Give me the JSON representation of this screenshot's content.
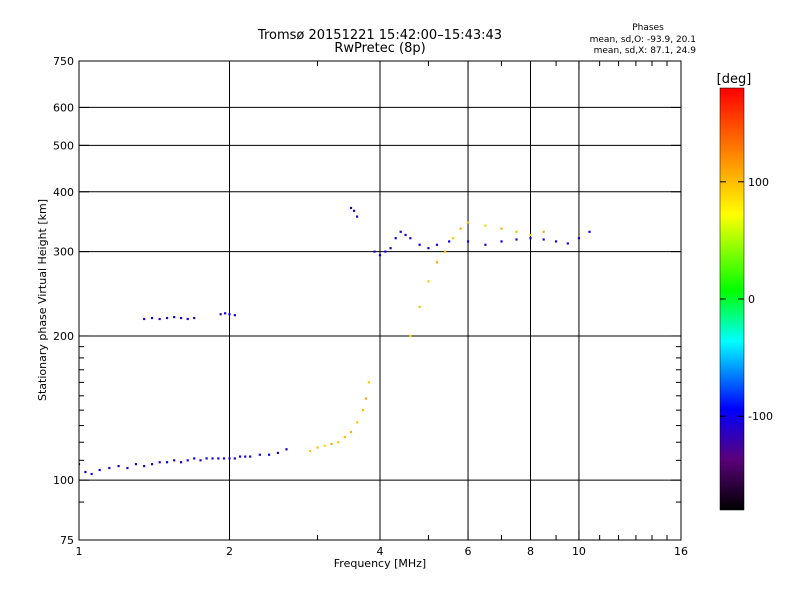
{
  "header": {
    "title": "Tromsø 20151221 15:42:00–15:43:43",
    "subtitle": "RwPretec (8p)"
  },
  "phases_box": {
    "heading": "Phases",
    "line_o": "mean, sd,O: -93.9, 20.1",
    "line_x": "mean, sd,X:  87.1, 24.9"
  },
  "colorbar": {
    "unit": "[deg]",
    "ticks": [
      {
        "value": 100,
        "label": "100"
      },
      {
        "value": 0,
        "label": "0"
      },
      {
        "value": -100,
        "label": "-100"
      }
    ],
    "range": [
      -180,
      180
    ]
  },
  "chart_data": {
    "type": "scatter",
    "title": "Tromsø 20151221 15:42:00–15:43:43",
    "subtitle": "RwPretec (8p)",
    "xlabel": "Frequency [MHz]",
    "ylabel": "Stationary phase Virtual Height [km]",
    "x_scale": "log",
    "y_scale": "log",
    "xlim": [
      1,
      16
    ],
    "ylim": [
      75,
      750
    ],
    "x_ticks": [
      1,
      2,
      4,
      6,
      8,
      10,
      16
    ],
    "x_minor_ticks": [
      3,
      5,
      7,
      9,
      11,
      12,
      13,
      14,
      15
    ],
    "y_ticks": [
      75,
      100,
      200,
      300,
      400,
      500,
      600,
      750
    ],
    "y_minor_ticks": [
      90,
      110,
      120,
      130,
      140,
      150,
      160,
      170,
      180,
      190
    ],
    "x_gridlines": [
      2,
      4,
      6,
      8,
      10
    ],
    "y_gridlines": [
      100,
      200,
      300,
      400,
      500,
      600
    ],
    "grid": true,
    "color_dimension": "phase [deg]",
    "series": [
      {
        "color": "#2020e0",
        "points": [
          [
            1.0,
            108,
            -110
          ],
          [
            1.03,
            104,
            -105
          ],
          [
            1.06,
            103,
            -110
          ],
          [
            1.1,
            105,
            -100
          ],
          [
            1.15,
            106,
            -110
          ],
          [
            1.2,
            107,
            -105
          ],
          [
            1.25,
            106,
            -115
          ],
          [
            1.3,
            108,
            -100
          ],
          [
            1.35,
            107,
            -110
          ],
          [
            1.4,
            108,
            -105
          ],
          [
            1.45,
            109,
            -110
          ],
          [
            1.5,
            109,
            -100
          ],
          [
            1.55,
            110,
            -110
          ],
          [
            1.6,
            109,
            -105
          ],
          [
            1.65,
            110,
            -115
          ],
          [
            1.7,
            111,
            -100
          ],
          [
            1.75,
            110,
            -110
          ],
          [
            1.8,
            111,
            -105
          ],
          [
            1.85,
            111,
            -110
          ],
          [
            1.9,
            111,
            -100
          ],
          [
            1.95,
            111,
            -110
          ],
          [
            2.0,
            111,
            -105
          ],
          [
            2.05,
            111,
            -110
          ],
          [
            2.1,
            112,
            -100
          ],
          [
            2.15,
            112,
            -110
          ],
          [
            2.2,
            112,
            -105
          ],
          [
            2.3,
            113,
            -110
          ],
          [
            2.4,
            113,
            -100
          ],
          [
            2.5,
            114,
            -110
          ],
          [
            2.6,
            116,
            -105
          ]
        ]
      },
      {
        "color": "#1818c8",
        "points": [
          [
            1.35,
            217,
            -110
          ],
          [
            1.4,
            218,
            -105
          ],
          [
            1.45,
            217,
            -115
          ],
          [
            1.5,
            218,
            -110
          ],
          [
            1.55,
            219,
            -100
          ],
          [
            1.6,
            218,
            -110
          ],
          [
            1.65,
            217,
            -105
          ],
          [
            1.7,
            218,
            -110
          ],
          [
            1.92,
            222,
            -110
          ],
          [
            1.96,
            223,
            -105
          ],
          [
            2.0,
            222,
            -110
          ],
          [
            2.05,
            221,
            -100
          ]
        ]
      },
      {
        "color": "#e6e020",
        "points": [
          [
            2.9,
            115,
            95
          ],
          [
            3.0,
            117,
            100
          ],
          [
            3.1,
            118,
            90
          ],
          [
            3.2,
            119,
            110
          ],
          [
            3.3,
            120,
            95
          ],
          [
            3.4,
            123,
            100
          ],
          [
            3.5,
            126,
            105
          ],
          [
            3.6,
            132,
            95
          ],
          [
            3.7,
            140,
            100
          ],
          [
            3.75,
            148,
            110
          ],
          [
            3.8,
            160,
            95
          ]
        ]
      },
      {
        "color": "#2828d8",
        "points": [
          [
            3.5,
            370,
            -110
          ],
          [
            3.55,
            365,
            -100
          ],
          [
            3.6,
            355,
            -105
          ],
          [
            3.9,
            300,
            -110
          ],
          [
            4.0,
            295,
            -100
          ],
          [
            4.1,
            300,
            -110
          ],
          [
            4.2,
            305,
            -105
          ],
          [
            4.3,
            320,
            -100
          ],
          [
            4.4,
            330,
            -110
          ],
          [
            4.5,
            325,
            -105
          ],
          [
            4.6,
            320,
            -110
          ],
          [
            4.8,
            310,
            -100
          ],
          [
            5.0,
            305,
            -105
          ],
          [
            5.2,
            310,
            -110
          ],
          [
            5.5,
            315,
            -100
          ],
          [
            6.0,
            315,
            -105
          ],
          [
            6.5,
            310,
            -110
          ],
          [
            7.0,
            315,
            -100
          ],
          [
            7.5,
            318,
            -110
          ],
          [
            8.0,
            320,
            -105
          ],
          [
            8.5,
            318,
            -110
          ],
          [
            9.0,
            315,
            -100
          ],
          [
            9.5,
            312,
            -105
          ],
          [
            10.0,
            320,
            -110
          ],
          [
            10.5,
            330,
            -100
          ]
        ]
      },
      {
        "color": "#d8e020",
        "points": [
          [
            4.6,
            200,
            90
          ],
          [
            4.8,
            230,
            100
          ],
          [
            5.0,
            260,
            95
          ],
          [
            5.2,
            285,
            110
          ],
          [
            5.4,
            300,
            100
          ],
          [
            5.6,
            320,
            95
          ],
          [
            5.8,
            335,
            105
          ],
          [
            6.0,
            345,
            100
          ],
          [
            6.5,
            340,
            90
          ],
          [
            7.0,
            335,
            105
          ],
          [
            7.5,
            330,
            100
          ],
          [
            8.0,
            325,
            95
          ],
          [
            8.5,
            330,
            110
          ]
        ]
      }
    ]
  }
}
